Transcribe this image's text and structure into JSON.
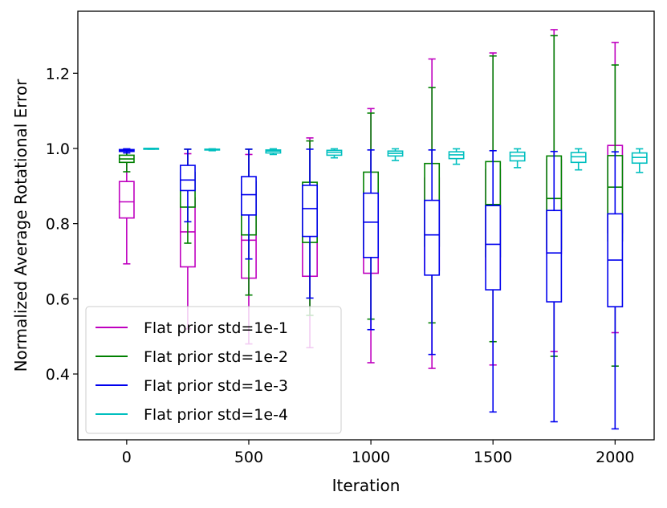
{
  "chart_data": {
    "type": "box",
    "title": "",
    "xlabel": "Iteration",
    "ylabel": "Normalized Average Rotational Error",
    "x_ticks": [
      0,
      500,
      1000,
      1500,
      2000
    ],
    "x_tick_labels": [
      "0",
      "500",
      "1000",
      "1500",
      "2000"
    ],
    "y_ticks": [
      0.4,
      0.6,
      0.8,
      1.0,
      1.2
    ],
    "y_tick_labels": [
      "0.4",
      "0.6",
      "0.8",
      "1.0",
      "1.2"
    ],
    "xlim": [
      -200,
      2160
    ],
    "ylim": [
      0.225,
      1.365
    ],
    "box_width": 60,
    "legend_position": "lower left",
    "series": [
      {
        "name": "Flat prior std=1e-1",
        "color": "#bf00bf",
        "offset": 0,
        "boxes": [
          {
            "x": 0,
            "whislo": 0.693,
            "q1": 0.815,
            "med": 0.858,
            "q3": 0.912,
            "whishi": 0.992
          },
          {
            "x": 250,
            "whislo": 0.52,
            "q1": 0.685,
            "med": 0.778,
            "q3": 0.868,
            "whishi": 0.986
          },
          {
            "x": 500,
            "whislo": 0.48,
            "q1": 0.655,
            "med": 0.756,
            "q3": 0.864,
            "whishi": 0.984
          },
          {
            "x": 750,
            "whislo": 0.47,
            "q1": 0.66,
            "med": 0.77,
            "q3": 0.89,
            "whishi": 1.028
          },
          {
            "x": 1000,
            "whislo": 0.43,
            "q1": 0.668,
            "med": 0.8,
            "q3": 0.886,
            "whishi": 1.106
          },
          {
            "x": 1250,
            "whislo": 0.415,
            "q1": 0.676,
            "med": 0.826,
            "q3": 0.921,
            "whishi": 1.238
          },
          {
            "x": 1500,
            "whislo": 0.424,
            "q1": 0.678,
            "med": 0.844,
            "q3": 0.944,
            "whishi": 1.254
          },
          {
            "x": 1750,
            "whislo": 0.46,
            "q1": 0.72,
            "med": 0.9,
            "q3": 0.97,
            "whishi": 1.316
          },
          {
            "x": 2000,
            "whislo": 0.51,
            "q1": 0.776,
            "med": 0.917,
            "q3": 1.008,
            "whishi": 1.282
          }
        ]
      },
      {
        "name": "Flat prior std=1e-2",
        "color": "#008000",
        "offset": 0,
        "boxes": [
          {
            "x": 0,
            "whislo": 0.938,
            "q1": 0.963,
            "med": 0.972,
            "q3": 0.982,
            "whishi": 0.998
          },
          {
            "x": 250,
            "whislo": 0.748,
            "q1": 0.844,
            "med": 0.894,
            "q3": 0.936,
            "whishi": 0.998
          },
          {
            "x": 500,
            "whislo": 0.61,
            "q1": 0.77,
            "med": 0.852,
            "q3": 0.912,
            "whishi": 0.998
          },
          {
            "x": 750,
            "whislo": 0.556,
            "q1": 0.75,
            "med": 0.823,
            "q3": 0.91,
            "whishi": 1.02
          },
          {
            "x": 1000,
            "whislo": 0.546,
            "q1": 0.734,
            "med": 0.818,
            "q3": 0.937,
            "whishi": 1.094
          },
          {
            "x": 1250,
            "whislo": 0.536,
            "q1": 0.74,
            "med": 0.818,
            "q3": 0.96,
            "whishi": 1.162
          },
          {
            "x": 1500,
            "whislo": 0.486,
            "q1": 0.712,
            "med": 0.851,
            "q3": 0.965,
            "whishi": 1.246
          },
          {
            "x": 1750,
            "whislo": 0.447,
            "q1": 0.732,
            "med": 0.867,
            "q3": 0.98,
            "whishi": 1.3
          },
          {
            "x": 2000,
            "whislo": 0.421,
            "q1": 0.754,
            "med": 0.897,
            "q3": 0.981,
            "whishi": 1.222
          }
        ]
      },
      {
        "name": "Flat prior std=1e-3",
        "color": "#0000ee",
        "offset": 0,
        "boxes": [
          {
            "x": 0,
            "whislo": 0.988,
            "q1": 0.992,
            "med": 0.995,
            "q3": 0.997,
            "whishi": 0.999
          },
          {
            "x": 250,
            "whislo": 0.805,
            "q1": 0.888,
            "med": 0.916,
            "q3": 0.955,
            "whishi": 0.998
          },
          {
            "x": 500,
            "whislo": 0.706,
            "q1": 0.823,
            "med": 0.877,
            "q3": 0.925,
            "whishi": 0.998
          },
          {
            "x": 750,
            "whislo": 0.602,
            "q1": 0.766,
            "med": 0.84,
            "q3": 0.902,
            "whishi": 0.998
          },
          {
            "x": 1000,
            "whislo": 0.518,
            "q1": 0.71,
            "med": 0.804,
            "q3": 0.881,
            "whishi": 0.996
          },
          {
            "x": 1250,
            "whislo": 0.452,
            "q1": 0.663,
            "med": 0.77,
            "q3": 0.862,
            "whishi": 0.996
          },
          {
            "x": 1500,
            "whislo": 0.299,
            "q1": 0.624,
            "med": 0.745,
            "q3": 0.848,
            "whishi": 0.994
          },
          {
            "x": 1750,
            "whislo": 0.273,
            "q1": 0.592,
            "med": 0.722,
            "q3": 0.835,
            "whishi": 0.992
          },
          {
            "x": 2000,
            "whislo": 0.254,
            "q1": 0.579,
            "med": 0.703,
            "q3": 0.826,
            "whishi": 0.991
          }
        ]
      },
      {
        "name": "Flat prior std=1e-4",
        "color": "#00bfbf",
        "offset": 0,
        "boxes": [
          {
            "x": 100,
            "whislo": 0.998,
            "q1": 0.999,
            "med": 1.0,
            "q3": 1.0,
            "whishi": 1.0
          },
          {
            "x": 350,
            "whislo": 0.994,
            "q1": 0.996,
            "med": 0.997,
            "q3": 0.998,
            "whishi": 0.999
          },
          {
            "x": 600,
            "whislo": 0.984,
            "q1": 0.988,
            "med": 0.993,
            "q3": 0.996,
            "whishi": 0.999
          },
          {
            "x": 850,
            "whislo": 0.975,
            "q1": 0.982,
            "med": 0.99,
            "q3": 0.995,
            "whishi": 0.999
          },
          {
            "x": 1100,
            "whislo": 0.968,
            "q1": 0.98,
            "med": 0.987,
            "q3": 0.993,
            "whishi": 0.999
          },
          {
            "x": 1350,
            "whislo": 0.958,
            "q1": 0.973,
            "med": 0.983,
            "q3": 0.991,
            "whishi": 0.999
          },
          {
            "x": 1600,
            "whislo": 0.949,
            "q1": 0.967,
            "med": 0.98,
            "q3": 0.99,
            "whishi": 0.999
          },
          {
            "x": 1850,
            "whislo": 0.943,
            "q1": 0.963,
            "med": 0.978,
            "q3": 0.989,
            "whishi": 0.999
          },
          {
            "x": 2100,
            "whislo": 0.936,
            "q1": 0.961,
            "med": 0.976,
            "q3": 0.988,
            "whishi": 0.999
          }
        ]
      }
    ]
  }
}
